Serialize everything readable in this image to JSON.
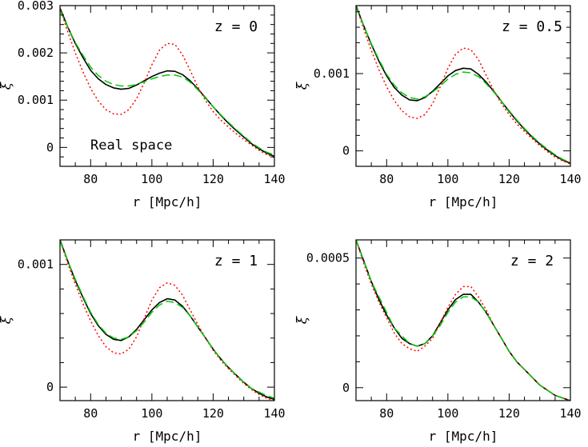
{
  "chart_data": [
    {
      "type": "line",
      "panel_label": "z = 0",
      "annotation": "Real space",
      "xlabel": "r [Mpc/h]",
      "ylabel": "ξ",
      "xlim": [
        70,
        140
      ],
      "ylim": [
        -0.0004,
        0.003
      ],
      "xticks": [
        80,
        100,
        120,
        140
      ],
      "yticks": [
        0,
        0.001,
        0.002,
        0.003
      ],
      "ytick_labels": [
        "0",
        "0.001",
        "0.002",
        "0.003"
      ],
      "x": [
        70,
        72.5,
        75,
        77.5,
        80,
        82.5,
        85,
        87.5,
        90,
        92.5,
        95,
        97.5,
        100,
        102.5,
        105,
        107.5,
        110,
        112.5,
        115,
        117.5,
        120,
        122.5,
        125,
        127.5,
        130,
        132.5,
        135,
        137.5,
        140
      ],
      "series": [
        {
          "style": "solid",
          "color": "#000000",
          "values": [
            0.00295,
            0.00255,
            0.0022,
            0.0019,
            0.00163,
            0.00145,
            0.00133,
            0.00126,
            0.00123,
            0.00125,
            0.00132,
            0.00141,
            0.0015,
            0.00157,
            0.00162,
            0.00161,
            0.00154,
            0.00141,
            0.00124,
            0.00105,
            0.00086,
            0.00068,
            0.00051,
            0.00036,
            0.00022,
            8e-05,
            -3e-05,
            -0.00012,
            -0.00019
          ]
        },
        {
          "style": "dotted",
          "color": "#ff0000",
          "values": [
            0.00295,
            0.00245,
            0.002,
            0.0016,
            0.00125,
            0.00098,
            0.0008,
            0.00071,
            0.0007,
            0.0008,
            0.00103,
            0.00137,
            0.00175,
            0.00206,
            0.0022,
            0.00218,
            0.00196,
            0.00163,
            0.00128,
            0.00099,
            0.00076,
            0.00058,
            0.00043,
            0.00029,
            0.00017,
            5e-05,
            -6e-05,
            -0.00015,
            -0.00021
          ]
        },
        {
          "style": "dashed",
          "color": "#00cc00",
          "values": [
            0.0029,
            0.00255,
            0.00222,
            0.00195,
            0.0017,
            0.00152,
            0.0014,
            0.00133,
            0.0013,
            0.0013,
            0.00133,
            0.00139,
            0.00145,
            0.0015,
            0.00153,
            0.00153,
            0.00149,
            0.00138,
            0.00122,
            0.00104,
            0.00086,
            0.00069,
            0.00053,
            0.00038,
            0.00024,
            0.0001,
            -1e-05,
            -0.0001,
            -0.00016
          ]
        }
      ]
    },
    {
      "type": "line",
      "panel_label": "z = 0.5",
      "xlabel": "r [Mpc/h]",
      "ylabel": "ξ",
      "xlim": [
        70,
        140
      ],
      "ylim": [
        -0.0002,
        0.00188
      ],
      "xticks": [
        80,
        100,
        120,
        140
      ],
      "yticks": [
        0,
        0.001
      ],
      "ytick_labels": [
        "0",
        "0.001"
      ],
      "x": [
        70,
        72.5,
        75,
        77.5,
        80,
        82.5,
        85,
        87.5,
        90,
        92.5,
        95,
        97.5,
        100,
        102.5,
        105,
        107.5,
        110,
        112.5,
        115,
        117.5,
        120,
        122.5,
        125,
        127.5,
        130,
        132.5,
        135,
        137.5,
        140
      ],
      "series": [
        {
          "style": "solid",
          "color": "#000000",
          "values": [
            0.00188,
            0.00162,
            0.00138,
            0.00116,
            0.00097,
            0.00082,
            0.00072,
            0.00066,
            0.00065,
            0.00069,
            0.00077,
            0.00087,
            0.00097,
            0.00104,
            0.00107,
            0.00106,
            0.00099,
            0.00089,
            0.00077,
            0.00064,
            0.00051,
            0.00039,
            0.00028,
            0.00018,
            9e-05,
            1e-05,
            -6e-05,
            -0.00012,
            -0.00016
          ]
        },
        {
          "style": "dotted",
          "color": "#ff0000",
          "values": [
            0.00188,
            0.00158,
            0.0013,
            0.00105,
            0.00083,
            0.00065,
            0.00052,
            0.00044,
            0.00042,
            0.00047,
            0.00061,
            0.00083,
            0.00107,
            0.00125,
            0.00133,
            0.00131,
            0.00118,
            0.00098,
            0.00078,
            0.00061,
            0.00047,
            0.00035,
            0.00025,
            0.00016,
            7e-05,
            -1e-05,
            -8e-05,
            -0.00013,
            -0.00017
          ]
        },
        {
          "style": "dashed",
          "color": "#00cc00",
          "values": [
            0.00186,
            0.00162,
            0.00139,
            0.00118,
            0.00099,
            0.00085,
            0.00075,
            0.00069,
            0.00067,
            0.0007,
            0.00076,
            0.00084,
            0.00093,
            0.00099,
            0.00102,
            0.00101,
            0.00096,
            0.00087,
            0.00076,
            0.00064,
            0.00052,
            0.0004,
            0.00029,
            0.00019,
            0.0001,
            2e-05,
            -5e-05,
            -0.00011,
            -0.00015
          ]
        }
      ]
    },
    {
      "type": "line",
      "panel_label": "z = 1",
      "xlabel": "r [Mpc/h]",
      "ylabel": "ξ",
      "xlim": [
        70,
        140
      ],
      "ylim": [
        -0.00011,
        0.0012
      ],
      "xticks": [
        80,
        100,
        120,
        140
      ],
      "yticks": [
        0,
        0.001
      ],
      "ytick_labels": [
        "0",
        "0.001"
      ],
      "x": [
        70,
        72.5,
        75,
        77.5,
        80,
        82.5,
        85,
        87.5,
        90,
        92.5,
        95,
        97.5,
        100,
        102.5,
        105,
        107.5,
        110,
        112.5,
        115,
        117.5,
        120,
        122.5,
        125,
        127.5,
        130,
        132.5,
        135,
        137.5,
        140
      ],
      "series": [
        {
          "style": "solid",
          "color": "#000000",
          "values": [
            0.0012,
            0.00103,
            0.00087,
            0.00073,
            0.0006,
            0.0005,
            0.00043,
            0.00039,
            0.00038,
            0.00041,
            0.00047,
            0.00055,
            0.00063,
            0.00069,
            0.00072,
            0.00071,
            0.00066,
            0.00058,
            0.00049,
            0.0004,
            0.00031,
            0.00023,
            0.00016,
            0.0001,
            4e-05,
            -1e-05,
            -5e-05,
            -8e-05,
            -0.0001
          ]
        },
        {
          "style": "dotted",
          "color": "#ff0000",
          "values": [
            0.0012,
            0.00101,
            0.00084,
            0.00068,
            0.00054,
            0.00042,
            0.00033,
            0.00028,
            0.00027,
            0.00031,
            0.00041,
            0.00056,
            0.00071,
            0.00081,
            0.00085,
            0.00083,
            0.00075,
            0.00063,
            0.00051,
            0.0004,
            0.0003,
            0.00022,
            0.00015,
            9e-05,
            3e-05,
            -2e-05,
            -6e-05,
            -9e-05,
            -0.00011
          ]
        },
        {
          "style": "dashed",
          "color": "#00cc00",
          "values": [
            0.00119,
            0.00103,
            0.00088,
            0.00074,
            0.00061,
            0.00051,
            0.00044,
            0.0004,
            0.00039,
            0.00041,
            0.00046,
            0.00053,
            0.00061,
            0.00067,
            0.0007,
            0.00069,
            0.00065,
            0.00058,
            0.00049,
            0.0004,
            0.00031,
            0.00023,
            0.00016,
            0.0001,
            4e-05,
            -1e-05,
            -4e-05,
            -7e-05,
            -9e-05
          ]
        }
      ]
    },
    {
      "type": "line",
      "panel_label": "z = 2",
      "xlabel": "r [Mpc/h]",
      "ylabel": "ξ",
      "xlim": [
        70,
        140
      ],
      "ylim": [
        -5e-05,
        0.00057
      ],
      "xticks": [
        80,
        100,
        120,
        140
      ],
      "yticks": [
        0,
        0.0005
      ],
      "ytick_labels": [
        "0",
        "0.0005"
      ],
      "x": [
        70,
        72.5,
        75,
        77.5,
        80,
        82.5,
        85,
        87.5,
        90,
        92.5,
        95,
        97.5,
        100,
        102.5,
        105,
        107.5,
        110,
        112.5,
        115,
        117.5,
        120,
        122.5,
        125,
        127.5,
        130,
        132.5,
        135,
        137.5,
        140
      ],
      "series": [
        {
          "style": "solid",
          "color": "#000000",
          "values": [
            0.00057,
            0.00049,
            0.00041,
            0.00034,
            0.00028,
            0.00023,
            0.00019,
            0.00017,
            0.00016,
            0.00017,
            0.0002,
            0.00025,
            0.0003,
            0.00034,
            0.00036,
            0.00036,
            0.00033,
            0.00029,
            0.00024,
            0.00019,
            0.00014,
            0.0001,
            7e-05,
            4e-05,
            1e-05,
            -1e-05,
            -3e-05,
            -4e-05,
            -5e-05
          ]
        },
        {
          "style": "dotted",
          "color": "#ff0000",
          "values": [
            0.00057,
            0.00048,
            0.0004,
            0.00033,
            0.00027,
            0.00021,
            0.00017,
            0.00015,
            0.00014,
            0.00016,
            0.00019,
            0.00025,
            0.00031,
            0.00036,
            0.00039,
            0.00039,
            0.00035,
            0.0003,
            0.00024,
            0.00019,
            0.00014,
            0.0001,
            7e-05,
            4e-05,
            1e-05,
            -1e-05,
            -3e-05,
            -4e-05,
            -5e-05
          ]
        },
        {
          "style": "dashed",
          "color": "#00cc00",
          "values": [
            0.00057,
            0.00049,
            0.00041,
            0.00035,
            0.00029,
            0.00023,
            0.0002,
            0.00017,
            0.00016,
            0.00017,
            0.0002,
            0.00024,
            0.00029,
            0.00033,
            0.00035,
            0.00035,
            0.00033,
            0.00029,
            0.00024,
            0.00019,
            0.00014,
            0.0001,
            7e-05,
            4e-05,
            1e-05,
            -1e-05,
            -3e-05,
            -4e-05,
            -5e-05
          ]
        }
      ]
    }
  ]
}
